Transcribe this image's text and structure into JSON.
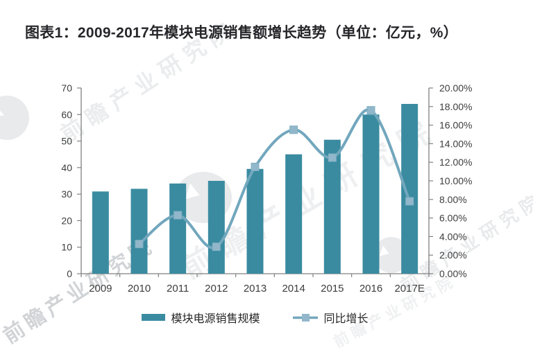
{
  "title": "图表1：2009-2017年模块电源销售额增长趋势（单位：亿元，%）",
  "watermark_text": "前瞻产业研究院",
  "legend": {
    "bar_label": "模块电源销售规模",
    "line_label": "同比增长"
  },
  "colors": {
    "bar": "#3a8ba0",
    "line": "#72a7bd",
    "marker_fill": "#92b7ca",
    "marker_edge": "#7fafc4",
    "axis_line": "#808080",
    "axis_text": "#3d3d3d",
    "title_text": "#26262a"
  },
  "chart_data": {
    "type": "combo",
    "categories": [
      "2009",
      "2010",
      "2011",
      "2012",
      "2013",
      "2014",
      "2015",
      "2016",
      "2017E"
    ],
    "series": [
      {
        "name": "模块电源销售规模",
        "type": "bar",
        "axis": "left",
        "unit": "亿元",
        "values": [
          31,
          32,
          34,
          35,
          39.5,
          45,
          50.5,
          60,
          64
        ]
      },
      {
        "name": "同比增长",
        "type": "line",
        "axis": "right",
        "unit": "%",
        "values": [
          null,
          3.2,
          6.3,
          2.9,
          11.5,
          15.5,
          12.5,
          17.6,
          7.8
        ]
      }
    ],
    "left_axis": {
      "min": 0,
      "max": 70,
      "tick_step": 10,
      "tick_labels": [
        "70",
        "60",
        "50",
        "40",
        "30",
        "20",
        "10",
        "0"
      ]
    },
    "right_axis": {
      "min": 0,
      "max": 20,
      "tick_step": 2,
      "tick_labels": [
        "20.00%",
        "18.00%",
        "16.00%",
        "14.00%",
        "12.00%",
        "10.00%",
        "8.00%",
        "6.00%",
        "4.00%",
        "2.00%",
        "0.00%"
      ]
    },
    "grid": false,
    "legend_position": "bottom",
    "title": "图表1：2009-2017年模块电源销售额增长趋势（单位：亿元，%）",
    "xlabel": "",
    "ylabel_left": "亿元",
    "ylabel_right": "%"
  }
}
